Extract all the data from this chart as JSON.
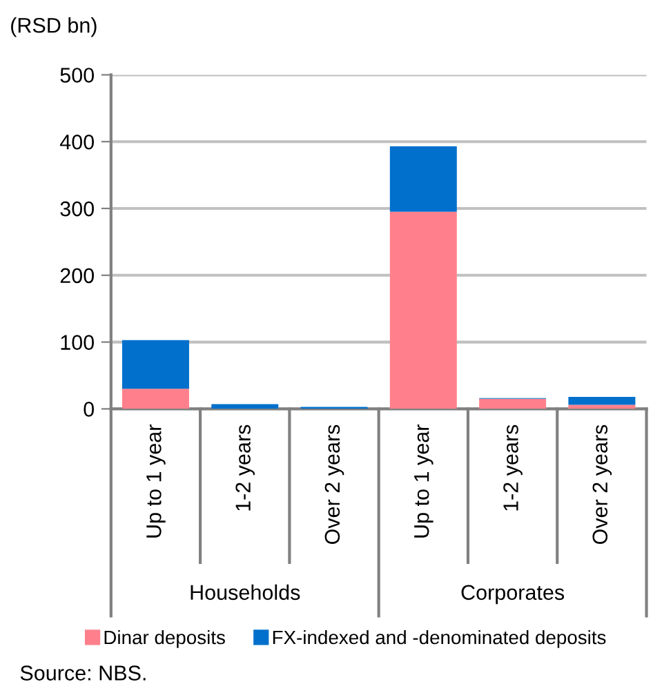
{
  "chart_data": {
    "type": "bar",
    "stacked": true,
    "ylabel": "(RSD bn)",
    "categories": [
      "Up to 1 year",
      "1-2 years",
      "Over 2 years",
      "Up to 1 year",
      "1-2 years",
      "Over 2 years"
    ],
    "series": [
      {
        "name": "Dinar deposits",
        "color": "#ff808c",
        "values": [
          30,
          null,
          null,
          295,
          15,
          6
        ]
      },
      {
        "name": "FX-indexed and -denominated deposits",
        "color": "#0070cc",
        "values": [
          73,
          7,
          3,
          98,
          1,
          12
        ]
      }
    ],
    "ylim": [
      0,
      500
    ],
    "yticks": [
      0,
      100,
      200,
      300,
      400,
      500
    ],
    "grid": "y",
    "legend": "bottom",
    "annotations": [
      "Households",
      "Corporates",
      "Source: NBS."
    ]
  }
}
